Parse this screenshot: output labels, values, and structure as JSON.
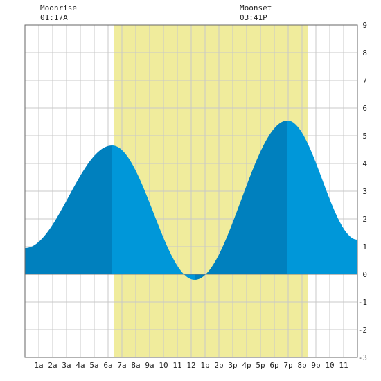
{
  "chart_data": {
    "type": "area",
    "title": "",
    "xlabel": "",
    "ylabel": "",
    "xlim": [
      0,
      24
    ],
    "ylim": [
      -3,
      9
    ],
    "y_ticks": [
      "-3",
      "-2",
      "-1",
      "0",
      "1",
      "2",
      "3",
      "4",
      "5",
      "6",
      "7",
      "8",
      "9"
    ],
    "x_ticks": [
      "1a",
      "2a",
      "3a",
      "4a",
      "5a",
      "6a",
      "7a",
      "8a",
      "9a",
      "10",
      "11",
      "12",
      "1p",
      "2p",
      "3p",
      "4p",
      "5p",
      "6p",
      "7p",
      "8p",
      "9p",
      "10",
      "11"
    ],
    "grid": true,
    "daylight": {
      "start_hour": 6.4,
      "end_hour": 20.4,
      "color": "#f0ec9c"
    },
    "tide_extremes": [
      {
        "hour": 0.0,
        "height": 0.95
      },
      {
        "hour": 6.3,
        "height": 4.65
      },
      {
        "hour": 12.25,
        "height": -0.2
      },
      {
        "hour": 18.95,
        "height": 5.55
      },
      {
        "hour": 24.0,
        "height": 1.25
      }
    ],
    "rising_color": "#0080be",
    "falling_color": "#0097d9",
    "annotations": [
      {
        "label": "Moonrise",
        "time": "01:17A"
      },
      {
        "label": "Moonset",
        "time": "03:41P"
      }
    ]
  }
}
